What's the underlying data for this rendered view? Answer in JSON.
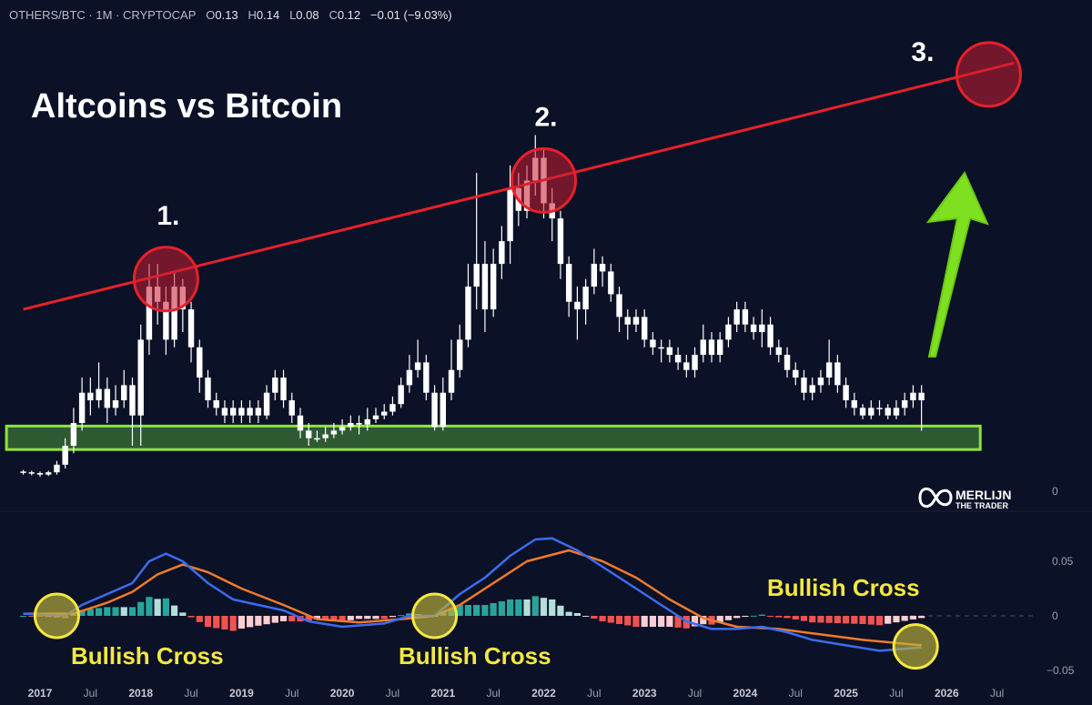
{
  "header": {
    "symbol": "OTHERS/BTC · 1M · CRYPTOCAP",
    "o_label": "O",
    "o": "0.13",
    "h_label": "H",
    "h": "0.14",
    "l_label": "L",
    "l": "0.08",
    "c_label": "C",
    "c": "0.12",
    "change": "−0.01 (−9.03%)"
  },
  "title": "Altcoins vs Bitcoin",
  "logo": {
    "line1": "MERLIJN",
    "line2": "THE TRADER"
  },
  "colors": {
    "background": "#0b1126",
    "candle": "#ffffff",
    "resistance": "#e8202a",
    "support_fill": "#2e5a32",
    "support_stroke": "#8fe33a",
    "arrow": "#7ee01f",
    "macd": "#3b6cf0",
    "signal": "#f07b2c",
    "hist_pos_up": "#26a69a",
    "hist_pos_down": "#b2dfdb",
    "hist_neg_down": "#ef5350",
    "hist_neg_up": "#ffcdd2",
    "cross_circle": "#f4e842",
    "label_yellow": "#f4e842"
  },
  "chart_data": [
    {
      "type": "candlestick",
      "interval": "1M",
      "start": "2016-11",
      "candles_ohlc": [
        [
          0.026,
          0.028,
          0.022,
          0.025
        ],
        [
          0.025,
          0.027,
          0.021,
          0.024
        ],
        [
          0.024,
          0.026,
          0.019,
          0.022
        ],
        [
          0.022,
          0.027,
          0.02,
          0.025
        ],
        [
          0.025,
          0.04,
          0.022,
          0.035
        ],
        [
          0.035,
          0.07,
          0.03,
          0.06
        ],
        [
          0.06,
          0.11,
          0.05,
          0.09
        ],
        [
          0.09,
          0.15,
          0.08,
          0.13
        ],
        [
          0.13,
          0.15,
          0.1,
          0.12
        ],
        [
          0.12,
          0.17,
          0.11,
          0.135
        ],
        [
          0.135,
          0.15,
          0.09,
          0.11
        ],
        [
          0.11,
          0.14,
          0.1,
          0.12
        ],
        [
          0.12,
          0.16,
          0.11,
          0.14
        ],
        [
          0.14,
          0.15,
          0.06,
          0.1
        ],
        [
          0.1,
          0.22,
          0.06,
          0.2
        ],
        [
          0.2,
          0.3,
          0.18,
          0.27
        ],
        [
          0.27,
          0.3,
          0.22,
          0.25
        ],
        [
          0.25,
          0.27,
          0.18,
          0.2
        ],
        [
          0.2,
          0.29,
          0.19,
          0.27
        ],
        [
          0.27,
          0.28,
          0.21,
          0.24
        ],
        [
          0.24,
          0.25,
          0.17,
          0.19
        ],
        [
          0.19,
          0.2,
          0.13,
          0.15
        ],
        [
          0.15,
          0.16,
          0.11,
          0.12
        ],
        [
          0.12,
          0.13,
          0.1,
          0.11
        ],
        [
          0.11,
          0.12,
          0.09,
          0.1
        ],
        [
          0.1,
          0.12,
          0.09,
          0.11
        ],
        [
          0.11,
          0.12,
          0.09,
          0.1
        ],
        [
          0.1,
          0.12,
          0.09,
          0.11
        ],
        [
          0.11,
          0.12,
          0.09,
          0.1
        ],
        [
          0.1,
          0.14,
          0.095,
          0.13
        ],
        [
          0.13,
          0.16,
          0.12,
          0.15
        ],
        [
          0.15,
          0.16,
          0.11,
          0.12
        ],
        [
          0.12,
          0.13,
          0.09,
          0.1
        ],
        [
          0.1,
          0.11,
          0.07,
          0.08
        ],
        [
          0.08,
          0.09,
          0.06,
          0.07
        ],
        [
          0.07,
          0.08,
          0.065,
          0.07
        ],
        [
          0.07,
          0.085,
          0.065,
          0.075
        ],
        [
          0.075,
          0.09,
          0.07,
          0.08
        ],
        [
          0.08,
          0.095,
          0.075,
          0.085
        ],
        [
          0.085,
          0.1,
          0.08,
          0.09
        ],
        [
          0.09,
          0.1,
          0.075,
          0.088
        ],
        [
          0.088,
          0.11,
          0.08,
          0.095
        ],
        [
          0.095,
          0.11,
          0.09,
          0.1
        ],
        [
          0.1,
          0.115,
          0.095,
          0.105
        ],
        [
          0.105,
          0.125,
          0.1,
          0.115
        ],
        [
          0.115,
          0.15,
          0.11,
          0.14
        ],
        [
          0.14,
          0.18,
          0.13,
          0.16
        ],
        [
          0.16,
          0.2,
          0.15,
          0.17
        ],
        [
          0.17,
          0.18,
          0.12,
          0.13
        ],
        [
          0.13,
          0.14,
          0.08,
          0.085
        ],
        [
          0.085,
          0.15,
          0.08,
          0.13
        ],
        [
          0.13,
          0.2,
          0.12,
          0.16
        ],
        [
          0.16,
          0.22,
          0.15,
          0.2
        ],
        [
          0.2,
          0.3,
          0.19,
          0.27
        ],
        [
          0.27,
          0.42,
          0.24,
          0.3
        ],
        [
          0.3,
          0.33,
          0.21,
          0.24
        ],
        [
          0.24,
          0.32,
          0.23,
          0.3
        ],
        [
          0.3,
          0.35,
          0.28,
          0.33
        ],
        [
          0.33,
          0.43,
          0.3,
          0.4
        ],
        [
          0.4,
          0.42,
          0.35,
          0.37
        ],
        [
          0.37,
          0.43,
          0.36,
          0.41
        ],
        [
          0.41,
          0.47,
          0.39,
          0.44
        ],
        [
          0.44,
          0.45,
          0.36,
          0.38
        ],
        [
          0.38,
          0.4,
          0.33,
          0.36
        ],
        [
          0.36,
          0.37,
          0.28,
          0.3
        ],
        [
          0.3,
          0.31,
          0.23,
          0.25
        ],
        [
          0.25,
          0.27,
          0.2,
          0.24
        ],
        [
          0.24,
          0.28,
          0.22,
          0.27
        ],
        [
          0.27,
          0.32,
          0.26,
          0.3
        ],
        [
          0.3,
          0.31,
          0.27,
          0.29
        ],
        [
          0.29,
          0.3,
          0.25,
          0.26
        ],
        [
          0.26,
          0.27,
          0.21,
          0.23
        ],
        [
          0.23,
          0.24,
          0.2,
          0.22
        ],
        [
          0.22,
          0.24,
          0.21,
          0.23
        ],
        [
          0.23,
          0.24,
          0.19,
          0.2
        ],
        [
          0.2,
          0.21,
          0.18,
          0.19
        ],
        [
          0.19,
          0.2,
          0.17,
          0.19
        ],
        [
          0.19,
          0.2,
          0.17,
          0.18
        ],
        [
          0.18,
          0.19,
          0.16,
          0.17
        ],
        [
          0.17,
          0.18,
          0.15,
          0.16
        ],
        [
          0.16,
          0.19,
          0.15,
          0.18
        ],
        [
          0.18,
          0.22,
          0.17,
          0.2
        ],
        [
          0.2,
          0.21,
          0.17,
          0.18
        ],
        [
          0.18,
          0.21,
          0.17,
          0.2
        ],
        [
          0.2,
          0.23,
          0.19,
          0.22
        ],
        [
          0.22,
          0.25,
          0.21,
          0.24
        ],
        [
          0.24,
          0.25,
          0.21,
          0.22
        ],
        [
          0.22,
          0.23,
          0.2,
          0.21
        ],
        [
          0.21,
          0.24,
          0.19,
          0.22
        ],
        [
          0.22,
          0.23,
          0.18,
          0.19
        ],
        [
          0.19,
          0.2,
          0.17,
          0.18
        ],
        [
          0.18,
          0.19,
          0.15,
          0.16
        ],
        [
          0.16,
          0.17,
          0.14,
          0.15
        ],
        [
          0.15,
          0.16,
          0.12,
          0.13
        ],
        [
          0.13,
          0.15,
          0.12,
          0.14
        ],
        [
          0.14,
          0.16,
          0.13,
          0.15
        ],
        [
          0.15,
          0.2,
          0.14,
          0.17
        ],
        [
          0.17,
          0.18,
          0.13,
          0.14
        ],
        [
          0.14,
          0.15,
          0.11,
          0.12
        ],
        [
          0.12,
          0.13,
          0.1,
          0.11
        ],
        [
          0.11,
          0.115,
          0.095,
          0.1
        ],
        [
          0.1,
          0.12,
          0.095,
          0.11
        ],
        [
          0.11,
          0.12,
          0.1,
          0.11
        ],
        [
          0.11,
          0.115,
          0.095,
          0.1
        ],
        [
          0.1,
          0.12,
          0.095,
          0.11
        ],
        [
          0.11,
          0.13,
          0.1,
          0.12
        ],
        [
          0.12,
          0.14,
          0.11,
          0.13
        ],
        [
          0.13,
          0.14,
          0.08,
          0.12
        ]
      ],
      "y_tick_labels": [
        "0"
      ],
      "resistance_line": [
        [
          "2016-11",
          0.24
        ],
        [
          "2026-09",
          0.565
        ]
      ],
      "support_zone": {
        "from": "2016-09",
        "to": "2026-05",
        "low": 0.055,
        "high": 0.086
      },
      "annotations": [
        {
          "label": "1.",
          "date": "2018-04",
          "value": 0.28
        },
        {
          "label": "2.",
          "date": "2022-01",
          "value": 0.41
        },
        {
          "label": "3.",
          "date": "2026-06",
          "value": 0.55
        }
      ]
    },
    {
      "type": "line",
      "indicator": "MACD",
      "ylim": [
        -0.05,
        0.05
      ],
      "y_tick_labels": [
        "0.05",
        "0",
        "−0.05"
      ],
      "macd": [
        [
          "2016-11",
          0.002
        ],
        [
          "2017-04",
          0.0
        ],
        [
          "2017-06",
          0.01
        ],
        [
          "2017-09",
          0.02
        ],
        [
          "2017-12",
          0.03
        ],
        [
          "2018-02",
          0.05
        ],
        [
          "2018-04",
          0.057
        ],
        [
          "2018-06",
          0.05
        ],
        [
          "2018-09",
          0.03
        ],
        [
          "2018-12",
          0.015
        ],
        [
          "2019-06",
          0.005
        ],
        [
          "2019-09",
          -0.005
        ],
        [
          "2020-01",
          -0.01
        ],
        [
          "2020-06",
          -0.007
        ],
        [
          "2020-09",
          0.0
        ],
        [
          "2020-12",
          0.0
        ],
        [
          "2021-03",
          0.02
        ],
        [
          "2021-06",
          0.035
        ],
        [
          "2021-09",
          0.055
        ],
        [
          "2021-12",
          0.07
        ],
        [
          "2022-02",
          0.071
        ],
        [
          "2022-05",
          0.06
        ],
        [
          "2022-09",
          0.04
        ],
        [
          "2022-12",
          0.025
        ],
        [
          "2023-03",
          0.01
        ],
        [
          "2023-06",
          -0.005
        ],
        [
          "2023-09",
          -0.012
        ],
        [
          "2023-12",
          -0.012
        ],
        [
          "2024-03",
          -0.01
        ],
        [
          "2024-06",
          -0.015
        ],
        [
          "2024-09",
          -0.022
        ],
        [
          "2025-01",
          -0.027
        ],
        [
          "2025-05",
          -0.032
        ],
        [
          "2025-10",
          -0.029
        ]
      ],
      "signal": [
        [
          "2016-11",
          0.002
        ],
        [
          "2017-05",
          0.002
        ],
        [
          "2017-09",
          0.012
        ],
        [
          "2017-12",
          0.022
        ],
        [
          "2018-03",
          0.038
        ],
        [
          "2018-06",
          0.047
        ],
        [
          "2018-09",
          0.04
        ],
        [
          "2019-01",
          0.025
        ],
        [
          "2019-06",
          0.01
        ],
        [
          "2019-10",
          -0.003
        ],
        [
          "2020-03",
          -0.006
        ],
        [
          "2020-08",
          -0.003
        ],
        [
          "2020-12",
          0.0
        ],
        [
          "2021-03",
          0.01
        ],
        [
          "2021-07",
          0.03
        ],
        [
          "2021-11",
          0.05
        ],
        [
          "2022-04",
          0.06
        ],
        [
          "2022-08",
          0.05
        ],
        [
          "2022-12",
          0.035
        ],
        [
          "2023-04",
          0.015
        ],
        [
          "2023-08",
          -0.002
        ],
        [
          "2023-12",
          -0.01
        ],
        [
          "2024-05",
          -0.012
        ],
        [
          "2024-10",
          -0.017
        ],
        [
          "2025-03",
          -0.022
        ],
        [
          "2025-10",
          -0.027
        ]
      ],
      "crosses": [
        {
          "date": "2017-03",
          "value": 0.0,
          "label": "Bullish Cross"
        },
        {
          "date": "2020-12",
          "value": 0.0,
          "label": "Bullish Cross"
        },
        {
          "date": "2025-08",
          "value": -0.028,
          "label": "Bullish Cross"
        }
      ]
    }
  ],
  "x_axis": {
    "ticks": [
      [
        "2017",
        "2017-01"
      ],
      [
        "Jul",
        "2017-07"
      ],
      [
        "2018",
        "2018-01"
      ],
      [
        "Jul",
        "2018-07"
      ],
      [
        "2019",
        "2019-01"
      ],
      [
        "Jul",
        "2019-07"
      ],
      [
        "2020",
        "2020-01"
      ],
      [
        "Jul",
        "2020-07"
      ],
      [
        "2021",
        "2021-01"
      ],
      [
        "Jul",
        "2021-07"
      ],
      [
        "2022",
        "2022-01"
      ],
      [
        "Jul",
        "2022-07"
      ],
      [
        "2023",
        "2023-01"
      ],
      [
        "Jul",
        "2023-07"
      ],
      [
        "2024",
        "2024-01"
      ],
      [
        "Jul",
        "2024-07"
      ],
      [
        "2025",
        "2025-01"
      ],
      [
        "Jul",
        "2025-07"
      ],
      [
        "2026",
        "2026-01"
      ],
      [
        "Jul",
        "2026-07"
      ]
    ]
  }
}
